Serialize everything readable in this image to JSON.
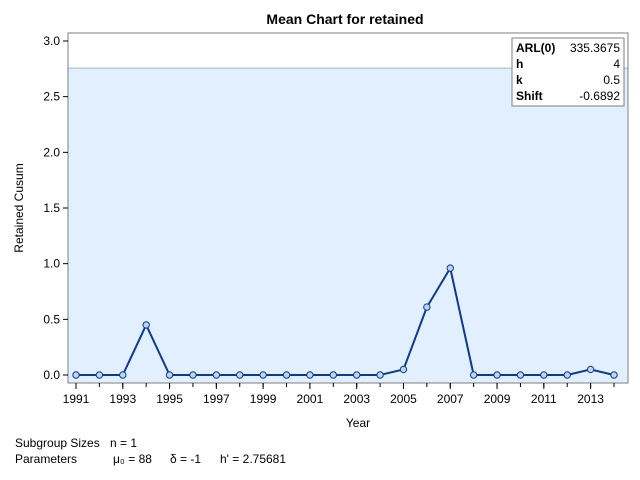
{
  "chart_data": {
    "type": "line",
    "title": "Mean Chart for retained",
    "xlabel": "Year",
    "ylabel": "Retained Cusum",
    "x": [
      1991,
      1992,
      1993,
      1994,
      1995,
      1996,
      1997,
      1998,
      1999,
      2000,
      2001,
      2002,
      2003,
      2004,
      2005,
      2006,
      2007,
      2008,
      2009,
      2010,
      2011,
      2012,
      2013,
      2014
    ],
    "series": [
      {
        "values": [
          0,
          0,
          0,
          0.45,
          0,
          0,
          0,
          0,
          0,
          0,
          0,
          0,
          0,
          0,
          0.05,
          0.61,
          0.96,
          0,
          0,
          0,
          0,
          0,
          0.05,
          0
        ]
      }
    ],
    "xlim": [
      1991,
      2014
    ],
    "ylim": [
      0,
      3.0
    ],
    "x_ticks": [
      "1991",
      "1993",
      "1995",
      "1997",
      "1999",
      "2001",
      "2003",
      "2005",
      "2007",
      "2009",
      "2011",
      "2013"
    ],
    "y_ticks": [
      "0.0",
      "0.5",
      "1.0",
      "1.5",
      "2.0",
      "2.5",
      "3.0"
    ],
    "decision_limit": 2.75681,
    "grid": false,
    "colors": {
      "line": "#0d3a8e",
      "marker_fill": "#bcd5f2",
      "band_fill": "#e2efff",
      "limit_line": "#a7b7c8"
    }
  },
  "inset_table": [
    {
      "key": "ARL(0)",
      "value": "335.3675"
    },
    {
      "key": "h",
      "value": "4"
    },
    {
      "key": "k",
      "value": "0.5"
    },
    {
      "key": "Shift",
      "value": "-0.6892"
    }
  ],
  "footnotes": {
    "subgroup_label": "Subgroup Sizes",
    "subgroup_value": "n = 1",
    "parameters_label": "Parameters",
    "mu": "μ₀ = 88",
    "delta": "δ = -1",
    "hprime": "h' = 2.75681"
  }
}
